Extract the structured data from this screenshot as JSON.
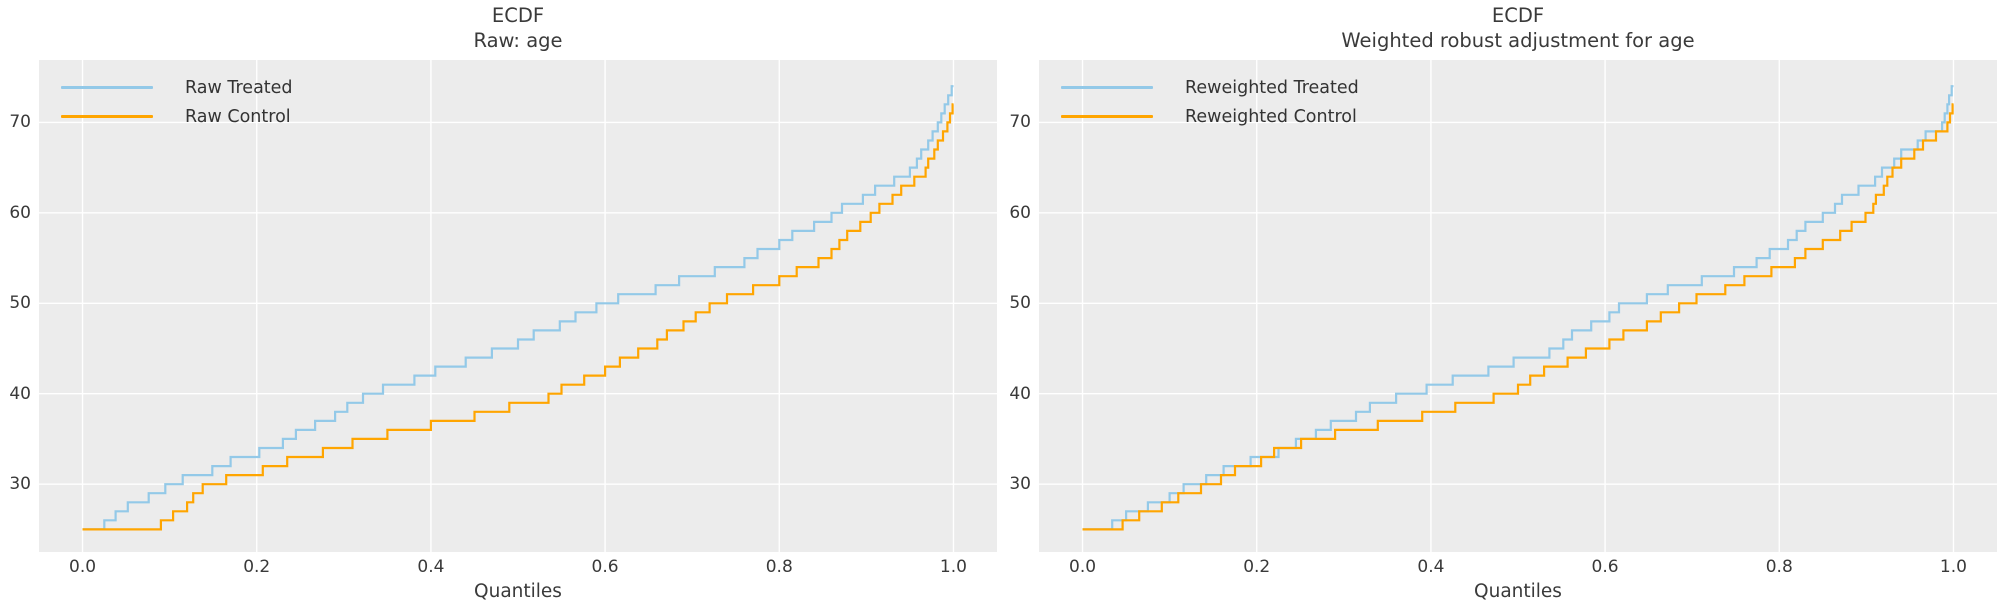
{
  "figure": {
    "bg": "#ffffff",
    "panel_bg": "#ececec",
    "grid_color": "#ffffff",
    "text_color": "#3a3a3a"
  },
  "chart_data": [
    {
      "type": "line",
      "variant": "ecdf-quantile-step",
      "title_lines": [
        "ECDF",
        "Raw: age"
      ],
      "xlabel": "Quantiles",
      "grid": true,
      "legend_position": "upper left",
      "xlim": [
        -0.05,
        1.05
      ],
      "ylim": [
        22.5,
        76.9
      ],
      "xticks": [
        0.0,
        0.2,
        0.4,
        0.6,
        0.8,
        1.0
      ],
      "xtick_labels": [
        "0.0",
        "0.2",
        "0.4",
        "0.6",
        "0.8",
        "1.0"
      ],
      "yticks": [
        30,
        40,
        50,
        60,
        70
      ],
      "ytick_labels": [
        "30",
        "40",
        "50",
        "60",
        "70"
      ],
      "series": [
        {
          "name": "Raw Treated",
          "color": "#93c9e8",
          "v_start": 25,
          "v_end": 74,
          "q": [
            0.0,
            0.025,
            0.038,
            0.052,
            0.076,
            0.095,
            0.115,
            0.149,
            0.17,
            0.203,
            0.23,
            0.245,
            0.267,
            0.29,
            0.304,
            0.322,
            0.345,
            0.381,
            0.405,
            0.44,
            0.47,
            0.5,
            0.518,
            0.548,
            0.566,
            0.59,
            0.615,
            0.658,
            0.685,
            0.726,
            0.76,
            0.775,
            0.8,
            0.815,
            0.84,
            0.86,
            0.872,
            0.896,
            0.91,
            0.932,
            0.95,
            0.958,
            0.963,
            0.971,
            0.976,
            0.982,
            0.986,
            0.99,
            0.994,
            0.998
          ]
        },
        {
          "name": "Raw Control",
          "color": "#ffa500",
          "v_start": 25,
          "v_end": 72,
          "q": [
            0.0,
            0.09,
            0.104,
            0.12,
            0.127,
            0.138,
            0.165,
            0.207,
            0.235,
            0.276,
            0.31,
            0.35,
            0.4,
            0.45,
            0.49,
            0.535,
            0.55,
            0.576,
            0.6,
            0.617,
            0.638,
            0.66,
            0.671,
            0.69,
            0.704,
            0.72,
            0.74,
            0.77,
            0.8,
            0.82,
            0.845,
            0.86,
            0.869,
            0.878,
            0.893,
            0.905,
            0.915,
            0.93,
            0.94,
            0.955,
            0.968,
            0.971,
            0.978,
            0.982,
            0.988,
            0.993,
            0.996,
            0.999
          ]
        }
      ]
    },
    {
      "type": "line",
      "variant": "ecdf-quantile-step",
      "title_lines": [
        "ECDF",
        "Weighted robust adjustment for age"
      ],
      "xlabel": "Quantiles",
      "grid": true,
      "legend_position": "upper left",
      "xlim": [
        -0.05,
        1.05
      ],
      "ylim": [
        22.5,
        76.9
      ],
      "xticks": [
        0.0,
        0.2,
        0.4,
        0.6,
        0.8,
        1.0
      ],
      "xtick_labels": [
        "0.0",
        "0.2",
        "0.4",
        "0.6",
        "0.8",
        "1.0"
      ],
      "yticks": [
        30,
        40,
        50,
        60,
        70
      ],
      "ytick_labels": [
        "30",
        "40",
        "50",
        "60",
        "70"
      ],
      "series": [
        {
          "name": "Reweighted Treated",
          "color": "#93c9e8",
          "v_start": 25,
          "v_end": 74,
          "q": [
            0.0,
            0.034,
            0.05,
            0.075,
            0.1,
            0.116,
            0.142,
            0.162,
            0.193,
            0.225,
            0.245,
            0.268,
            0.285,
            0.314,
            0.33,
            0.36,
            0.395,
            0.425,
            0.466,
            0.495,
            0.536,
            0.552,
            0.562,
            0.584,
            0.605,
            0.616,
            0.648,
            0.672,
            0.711,
            0.748,
            0.774,
            0.789,
            0.81,
            0.82,
            0.83,
            0.85,
            0.864,
            0.872,
            0.891,
            0.91,
            0.918,
            0.932,
            0.94,
            0.959,
            0.968,
            0.987,
            0.99,
            0.993,
            0.995,
            0.998
          ]
        },
        {
          "name": "Reweighted Control",
          "color": "#ffa500",
          "v_start": 25,
          "v_end": 72,
          "q": [
            0.0,
            0.046,
            0.065,
            0.091,
            0.11,
            0.136,
            0.159,
            0.175,
            0.205,
            0.22,
            0.251,
            0.29,
            0.339,
            0.39,
            0.428,
            0.472,
            0.5,
            0.514,
            0.53,
            0.557,
            0.578,
            0.605,
            0.621,
            0.648,
            0.664,
            0.685,
            0.705,
            0.738,
            0.76,
            0.791,
            0.818,
            0.83,
            0.85,
            0.87,
            0.883,
            0.899,
            0.908,
            0.911,
            0.92,
            0.924,
            0.93,
            0.94,
            0.955,
            0.965,
            0.98,
            0.993,
            0.996,
            0.999
          ]
        }
      ]
    }
  ]
}
